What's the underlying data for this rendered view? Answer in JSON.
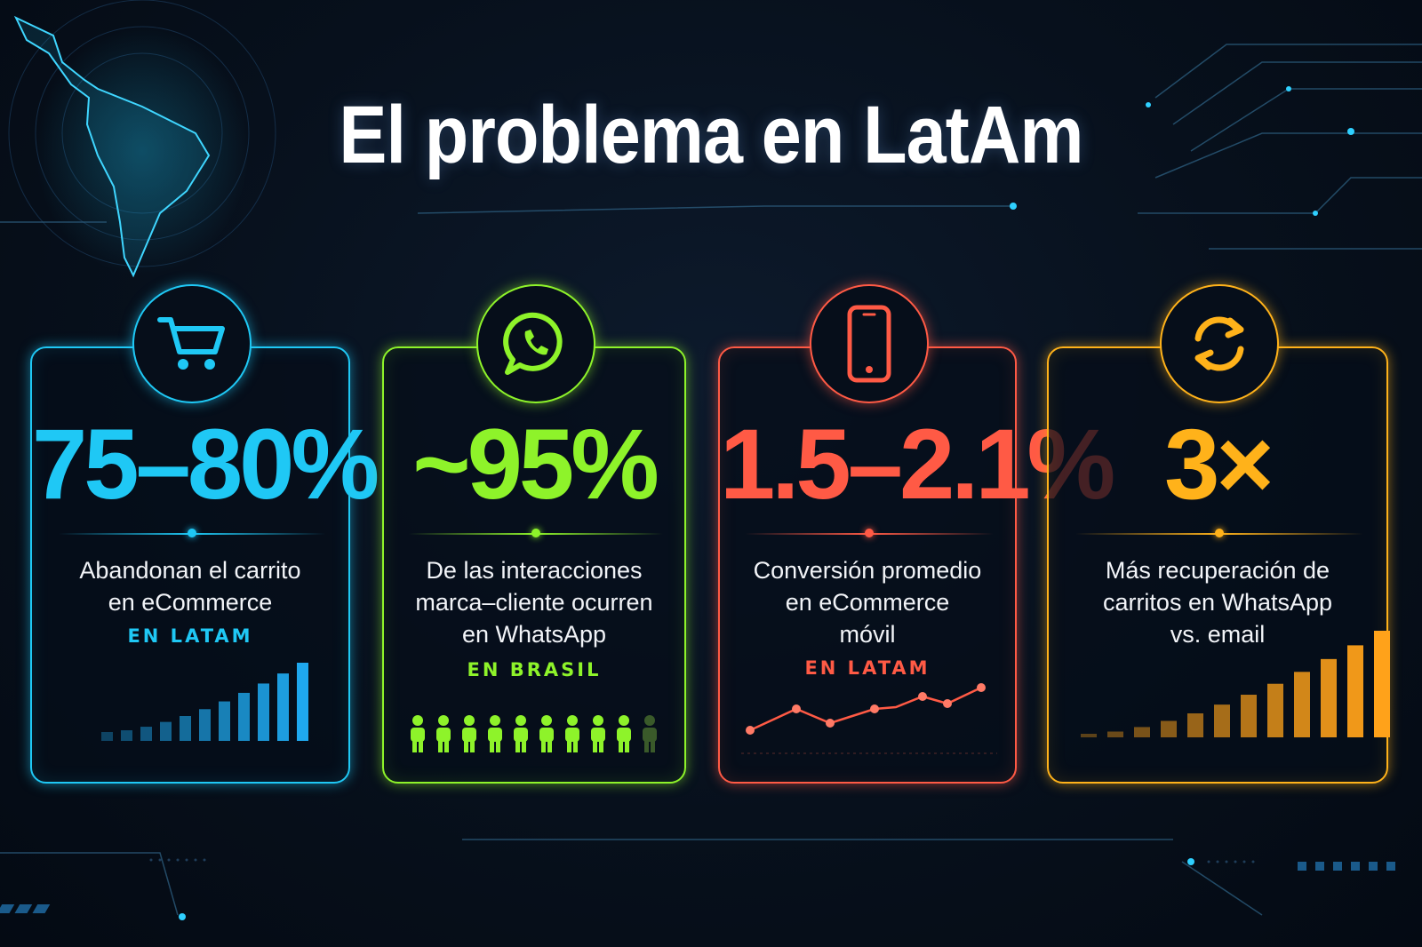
{
  "title": "El problema en LatAm",
  "colors": {
    "blue": "#1fc8f5",
    "green": "#8ef32a",
    "red": "#ff5a45",
    "orange": "#ffb21a"
  },
  "cards": [
    {
      "icon": "shopping-cart-icon",
      "value": "75–80%",
      "desc_lines": [
        "Abandonan el carrito",
        "en eCommerce"
      ],
      "region": "EN LATAM",
      "chart": "bar-chart"
    },
    {
      "icon": "whatsapp-icon",
      "value": "~95%",
      "desc_lines": [
        "De las interacciones",
        "marca–cliente ocurren",
        "en WhatsApp"
      ],
      "region": "EN BRASIL",
      "chart": "people",
      "people_highlighted": 9,
      "people_total": 10
    },
    {
      "icon": "smartphone-icon",
      "value": "1.5–2.1%",
      "desc_lines": [
        "Conversión promedio",
        "en eCommerce",
        "móvil"
      ],
      "region": "EN LATAM",
      "chart": "line-chart"
    },
    {
      "icon": "refresh-icon",
      "value": "3×",
      "desc_lines": [
        "Más recuperación de",
        "carritos en WhatsApp",
        "vs. email"
      ],
      "region": "",
      "chart": "bar-chart"
    }
  ]
}
